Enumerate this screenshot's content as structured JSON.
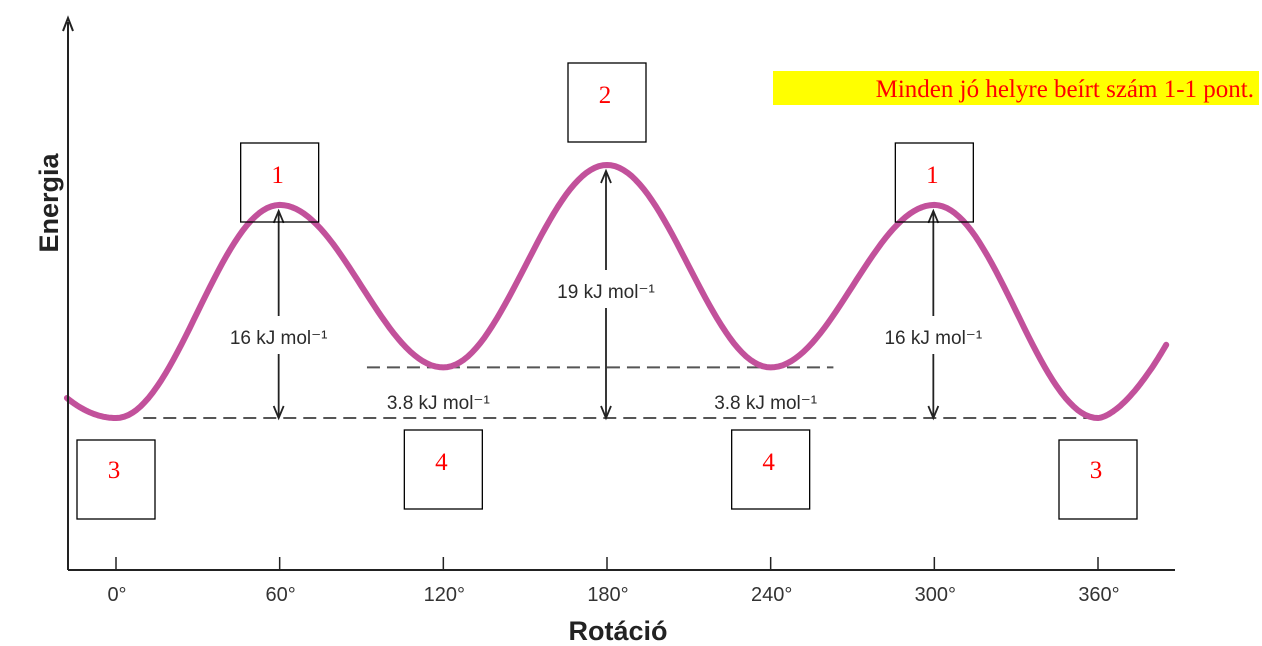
{
  "chart_data": {
    "type": "line",
    "xlabel": "Rotáció",
    "ylabel": "Energia",
    "x_ticks": [
      "0°",
      "60°",
      "120°",
      "180°",
      "240°",
      "300°",
      "360°"
    ],
    "x_tick_values": [
      0,
      60,
      120,
      180,
      240,
      300,
      360
    ],
    "xlim": [
      -18,
      385
    ],
    "ylim": [
      0,
      22
    ],
    "ylim_unit": "kJ mol⁻¹",
    "curve": {
      "color": "#c2519b",
      "x": [
        -18,
        0,
        60,
        120,
        180,
        240,
        300,
        360,
        385
      ],
      "y": [
        1.5,
        0,
        16,
        3.8,
        19,
        3.8,
        16,
        0,
        5.5
      ]
    },
    "reference_lines": [
      {
        "y": 0,
        "x_range": [
          10,
          360
        ],
        "style": "dashed"
      },
      {
        "y": 3.8,
        "x_range": [
          92,
          263
        ],
        "style": "dashed"
      }
    ],
    "annotations": [
      {
        "label": "16 kJ mol⁻¹",
        "x": 60,
        "from": 0,
        "to": 16,
        "type": "double-arrow"
      },
      {
        "label": "19 kJ mol⁻¹",
        "x": 180,
        "from": 0,
        "to": 19,
        "type": "double-arrow"
      },
      {
        "label": "16 kJ mol⁻¹",
        "x": 300,
        "from": 0,
        "to": 16,
        "type": "double-arrow"
      },
      {
        "label": "3.8 kJ mol⁻¹",
        "x": 120,
        "type": "gap-label"
      },
      {
        "label": "3.8 kJ mol⁻¹",
        "x": 240,
        "type": "gap-label"
      }
    ],
    "answer_boxes": [
      {
        "x": 0,
        "position": "below",
        "value": "3"
      },
      {
        "x": 60,
        "position": "above",
        "value": "1"
      },
      {
        "x": 120,
        "position": "below",
        "value": "4"
      },
      {
        "x": 180,
        "position": "above",
        "value": "2"
      },
      {
        "x": 240,
        "position": "below",
        "value": "4"
      },
      {
        "x": 300,
        "position": "above",
        "value": "1"
      },
      {
        "x": 360,
        "position": "below",
        "value": "3"
      }
    ],
    "grid": false
  },
  "note": {
    "text": "Minden jó helyre beírt szám 1-1 pont.",
    "highlight_color": "#ffff00",
    "text_color": "#ff0000"
  },
  "colors": {
    "axis": "#222222",
    "dash": "#555555",
    "arrow": "#222222",
    "box_border": "#000000",
    "box_text": "#ff0000"
  }
}
